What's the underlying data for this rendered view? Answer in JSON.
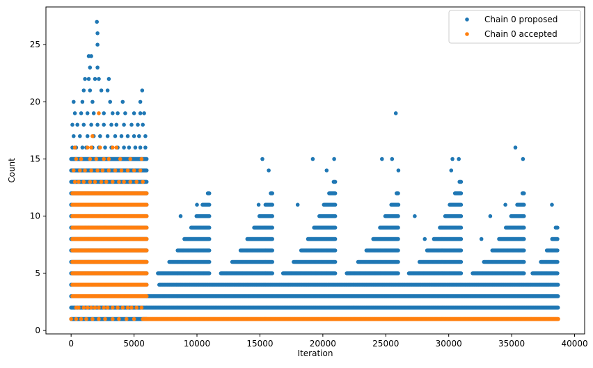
{
  "chart_data": {
    "type": "scatter",
    "title": "",
    "xlabel": "Iteration",
    "ylabel": "Count",
    "xlim": [
      -2000,
      40800
    ],
    "ylim": [
      -0.3,
      28.3
    ],
    "xticks": [
      0,
      5000,
      10000,
      15000,
      20000,
      25000,
      30000,
      35000,
      40000
    ],
    "xtick_labels": [
      "0",
      "5000",
      "10000",
      "15000",
      "20000",
      "25000",
      "30000",
      "35000",
      "40000"
    ],
    "yticks": [
      0,
      5,
      10,
      15,
      20,
      25
    ],
    "ytick_labels": [
      "0",
      "5",
      "10",
      "15",
      "20",
      "25"
    ],
    "grid": false,
    "legend_position": "top-right",
    "series": [
      {
        "name": "Chain 0 proposed",
        "color": "#1f77b4",
        "bands": [
          {
            "x_start": 0,
            "x_end": 6000,
            "y_min": 1,
            "y_max": 15,
            "step": 50
          },
          {
            "x_start": 6000,
            "x_end": 38700,
            "y_min": 2,
            "y_max": 3,
            "step": 40
          },
          {
            "x_start": 7000,
            "x_end": 38700,
            "y_min": 4,
            "y_max": 4,
            "step": 90
          }
        ],
        "waves": [
          {
            "start": 6000,
            "end": 11000,
            "peak": 12
          },
          {
            "start": 11000,
            "end": 16000,
            "peak": 12
          },
          {
            "start": 16000,
            "end": 21000,
            "peak": 13
          },
          {
            "start": 21000,
            "end": 26000,
            "peak": 12
          },
          {
            "start": 26000,
            "end": 31000,
            "peak": 13
          },
          {
            "start": 31000,
            "end": 36000,
            "peak": 12
          },
          {
            "start": 36000,
            "end": 38700,
            "peak": 9
          }
        ],
        "points": [
          {
            "x": 2050,
            "y": 27
          },
          {
            "x": 2100,
            "y": 26
          },
          {
            "x": 2100,
            "y": 25
          },
          {
            "x": 1400,
            "y": 24
          },
          {
            "x": 1600,
            "y": 24
          },
          {
            "x": 1500,
            "y": 23
          },
          {
            "x": 2100,
            "y": 23
          },
          {
            "x": 1100,
            "y": 22
          },
          {
            "x": 1400,
            "y": 22
          },
          {
            "x": 1900,
            "y": 22
          },
          {
            "x": 2200,
            "y": 22
          },
          {
            "x": 3000,
            "y": 22
          },
          {
            "x": 1000,
            "y": 21
          },
          {
            "x": 1500,
            "y": 21
          },
          {
            "x": 2400,
            "y": 21
          },
          {
            "x": 2900,
            "y": 21
          },
          {
            "x": 5650,
            "y": 21
          },
          {
            "x": 200,
            "y": 20
          },
          {
            "x": 900,
            "y": 20
          },
          {
            "x": 1700,
            "y": 20
          },
          {
            "x": 3100,
            "y": 20
          },
          {
            "x": 4100,
            "y": 20
          },
          {
            "x": 5500,
            "y": 20
          },
          {
            "x": 300,
            "y": 19
          },
          {
            "x": 800,
            "y": 19
          },
          {
            "x": 1300,
            "y": 19
          },
          {
            "x": 1800,
            "y": 19
          },
          {
            "x": 2600,
            "y": 19
          },
          {
            "x": 3300,
            "y": 19
          },
          {
            "x": 3700,
            "y": 19
          },
          {
            "x": 4300,
            "y": 19
          },
          {
            "x": 5000,
            "y": 19
          },
          {
            "x": 5500,
            "y": 19
          },
          {
            "x": 5800,
            "y": 19
          },
          {
            "x": 100,
            "y": 18
          },
          {
            "x": 500,
            "y": 18
          },
          {
            "x": 1000,
            "y": 18
          },
          {
            "x": 1600,
            "y": 18
          },
          {
            "x": 2100,
            "y": 18
          },
          {
            "x": 2600,
            "y": 18
          },
          {
            "x": 3200,
            "y": 18
          },
          {
            "x": 3600,
            "y": 18
          },
          {
            "x": 4200,
            "y": 18
          },
          {
            "x": 4800,
            "y": 18
          },
          {
            "x": 5300,
            "y": 18
          },
          {
            "x": 5700,
            "y": 18
          },
          {
            "x": 200,
            "y": 17
          },
          {
            "x": 700,
            "y": 17
          },
          {
            "x": 1300,
            "y": 17
          },
          {
            "x": 1800,
            "y": 17
          },
          {
            "x": 2300,
            "y": 17
          },
          {
            "x": 2900,
            "y": 17
          },
          {
            "x": 3500,
            "y": 17
          },
          {
            "x": 4000,
            "y": 17
          },
          {
            "x": 4500,
            "y": 17
          },
          {
            "x": 5000,
            "y": 17
          },
          {
            "x": 5400,
            "y": 17
          },
          {
            "x": 5900,
            "y": 17
          },
          {
            "x": 100,
            "y": 16
          },
          {
            "x": 400,
            "y": 16
          },
          {
            "x": 900,
            "y": 16
          },
          {
            "x": 1200,
            "y": 16
          },
          {
            "x": 1700,
            "y": 16
          },
          {
            "x": 2200,
            "y": 16
          },
          {
            "x": 2700,
            "y": 16
          },
          {
            "x": 3200,
            "y": 16
          },
          {
            "x": 3700,
            "y": 16
          },
          {
            "x": 4200,
            "y": 16
          },
          {
            "x": 4600,
            "y": 16
          },
          {
            "x": 5100,
            "y": 16
          },
          {
            "x": 5500,
            "y": 16
          },
          {
            "x": 5900,
            "y": 16
          },
          {
            "x": 15200,
            "y": 15
          },
          {
            "x": 19200,
            "y": 15
          },
          {
            "x": 20900,
            "y": 15
          },
          {
            "x": 24700,
            "y": 15
          },
          {
            "x": 25500,
            "y": 15
          },
          {
            "x": 30300,
            "y": 15
          },
          {
            "x": 30800,
            "y": 15
          },
          {
            "x": 35900,
            "y": 15
          },
          {
            "x": 15700,
            "y": 14
          },
          {
            "x": 20300,
            "y": 14
          },
          {
            "x": 26000,
            "y": 14
          },
          {
            "x": 30200,
            "y": 14
          },
          {
            "x": 25800,
            "y": 19
          },
          {
            "x": 35300,
            "y": 16
          },
          {
            "x": 18000,
            "y": 11
          },
          {
            "x": 26000,
            "y": 11
          },
          {
            "x": 34500,
            "y": 11
          },
          {
            "x": 38200,
            "y": 11
          },
          {
            "x": 10000,
            "y": 11
          },
          {
            "x": 14900,
            "y": 11
          },
          {
            "x": 8700,
            "y": 10
          },
          {
            "x": 27300,
            "y": 10
          },
          {
            "x": 33300,
            "y": 10
          },
          {
            "x": 38500,
            "y": 9
          },
          {
            "x": 32600,
            "y": 8
          },
          {
            "x": 28100,
            "y": 8
          }
        ]
      },
      {
        "name": "Chain 0 accepted",
        "color": "#ff7f0e",
        "bands": [
          {
            "x_start": 100,
            "x_end": 6000,
            "y_min": 3,
            "y_max": 12,
            "step": 50
          },
          {
            "x_start": 5700,
            "x_end": 38700,
            "y_min": 1,
            "y_max": 1,
            "step": 40
          }
        ],
        "waves": [],
        "points": [
          {
            "x": 2200,
            "y": 19
          },
          {
            "x": 1700,
            "y": 17
          },
          {
            "x": 300,
            "y": 16
          },
          {
            "x": 1300,
            "y": 16
          },
          {
            "x": 1600,
            "y": 16
          },
          {
            "x": 2300,
            "y": 16
          },
          {
            "x": 3300,
            "y": 16
          },
          {
            "x": 3600,
            "y": 16
          },
          {
            "x": 400,
            "y": 15
          },
          {
            "x": 800,
            "y": 15
          },
          {
            "x": 1500,
            "y": 15
          },
          {
            "x": 2000,
            "y": 15
          },
          {
            "x": 2600,
            "y": 15
          },
          {
            "x": 3000,
            "y": 15
          },
          {
            "x": 3900,
            "y": 15
          },
          {
            "x": 4700,
            "y": 15
          },
          {
            "x": 5600,
            "y": 15
          },
          {
            "x": 200,
            "y": 14
          },
          {
            "x": 700,
            "y": 14
          },
          {
            "x": 1100,
            "y": 14
          },
          {
            "x": 1600,
            "y": 14
          },
          {
            "x": 2100,
            "y": 14
          },
          {
            "x": 2500,
            "y": 14
          },
          {
            "x": 3000,
            "y": 14
          },
          {
            "x": 3500,
            "y": 14
          },
          {
            "x": 4000,
            "y": 14
          },
          {
            "x": 4500,
            "y": 14
          },
          {
            "x": 5000,
            "y": 14
          },
          {
            "x": 5500,
            "y": 14
          },
          {
            "x": 300,
            "y": 13
          },
          {
            "x": 600,
            "y": 13
          },
          {
            "x": 1000,
            "y": 13
          },
          {
            "x": 1500,
            "y": 13
          },
          {
            "x": 1900,
            "y": 13
          },
          {
            "x": 2400,
            "y": 13
          },
          {
            "x": 2800,
            "y": 13
          },
          {
            "x": 3300,
            "y": 13
          },
          {
            "x": 3800,
            "y": 13
          },
          {
            "x": 4200,
            "y": 13
          },
          {
            "x": 4700,
            "y": 13
          },
          {
            "x": 5200,
            "y": 13
          },
          {
            "x": 5700,
            "y": 13
          },
          {
            "x": 400,
            "y": 2
          },
          {
            "x": 600,
            "y": 2
          },
          {
            "x": 1000,
            "y": 2
          },
          {
            "x": 1300,
            "y": 2
          },
          {
            "x": 1600,
            "y": 2
          },
          {
            "x": 1900,
            "y": 2
          },
          {
            "x": 2200,
            "y": 2
          },
          {
            "x": 2600,
            "y": 2
          },
          {
            "x": 2900,
            "y": 2
          },
          {
            "x": 3300,
            "y": 2
          },
          {
            "x": 3700,
            "y": 2
          },
          {
            "x": 4100,
            "y": 2
          },
          {
            "x": 4500,
            "y": 2
          },
          {
            "x": 4800,
            "y": 2
          },
          {
            "x": 5200,
            "y": 2
          },
          {
            "x": 5600,
            "y": 2
          },
          {
            "x": 0,
            "y": 1
          },
          {
            "x": 400,
            "y": 1
          },
          {
            "x": 800,
            "y": 1
          },
          {
            "x": 1200,
            "y": 1
          },
          {
            "x": 1700,
            "y": 1
          },
          {
            "x": 2200,
            "y": 1
          },
          {
            "x": 2700,
            "y": 1
          },
          {
            "x": 3300,
            "y": 1
          },
          {
            "x": 3800,
            "y": 1
          },
          {
            "x": 4400,
            "y": 1
          },
          {
            "x": 5000,
            "y": 1
          }
        ]
      }
    ]
  }
}
